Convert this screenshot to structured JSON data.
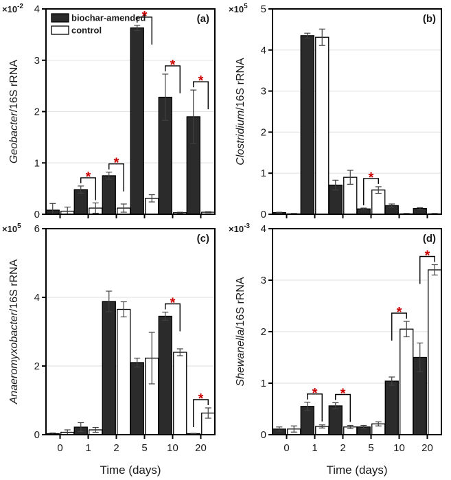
{
  "figure": {
    "title": "",
    "xlabel": "Time (days)",
    "categories": [
      "0",
      "1",
      "2",
      "5",
      "10",
      "20"
    ],
    "legend": {
      "position": "top-left-inside-panel-a",
      "items": [
        {
          "label": "biochar-amended",
          "swatch": "dark"
        },
        {
          "label": "control",
          "swatch": "light"
        }
      ]
    },
    "colors": {
      "bar_dark": "#2b2b2b",
      "bar_light": "#ffffff",
      "bar_border": "#000000",
      "axis": "#000000",
      "grid": "#e4e4e4",
      "error_bar": "#404040",
      "significance_star": "#cc0000",
      "text": "#1a1a1a"
    }
  },
  "chart_data": [
    {
      "type": "bar",
      "panel_label": "(a)",
      "ylabel_italic": "Geobacter",
      "ylabel_suffix": "/16S rRNA",
      "scale_base": "×10",
      "scale_exponent": "-2",
      "ylim": [
        0,
        4
      ],
      "yticks": [
        0,
        1,
        2,
        3,
        4
      ],
      "grid": true,
      "categories": [
        "0",
        "1",
        "2",
        "5",
        "10",
        "20"
      ],
      "series": [
        {
          "name": "biochar-amended",
          "values": [
            0.08,
            0.48,
            0.75,
            3.63,
            2.28,
            1.9
          ],
          "errors": [
            0.13,
            0.07,
            0.07,
            0.05,
            0.45,
            0.52
          ]
        },
        {
          "name": "control",
          "values": [
            0.06,
            0.12,
            0.12,
            0.31,
            0.03,
            0.04
          ],
          "errors": [
            0.08,
            0.1,
            0.08,
            0.07,
            0.01,
            0.01
          ]
        }
      ],
      "significant_days": [
        "1",
        "2",
        "5",
        "10",
        "20"
      ],
      "show_legend": true,
      "show_xticklabels": false,
      "xlabel": ""
    },
    {
      "type": "bar",
      "panel_label": "(b)",
      "ylabel_italic": "Clostridium",
      "ylabel_suffix": "/16S rRNA",
      "scale_base": "×10",
      "scale_exponent": "5",
      "ylim": [
        0,
        5
      ],
      "yticks": [
        0,
        1,
        2,
        3,
        4,
        5
      ],
      "grid": true,
      "categories": [
        "0",
        "1",
        "2",
        "5",
        "10",
        "20"
      ],
      "series": [
        {
          "name": "biochar-amended",
          "values": [
            0.04,
            4.35,
            0.71,
            0.13,
            0.21,
            0.14
          ],
          "errors": [
            0.01,
            0.06,
            0.12,
            0.02,
            0.04,
            0.02
          ]
        },
        {
          "name": "control",
          "values": [
            0.01,
            4.31,
            0.9,
            0.59,
            0.01,
            0.01
          ],
          "errors": [
            0.01,
            0.2,
            0.17,
            0.08,
            0.01,
            0.01
          ]
        }
      ],
      "significant_days": [
        "5"
      ],
      "show_legend": false,
      "show_xticklabels": false,
      "xlabel": ""
    },
    {
      "type": "bar",
      "panel_label": "(c)",
      "ylabel_italic": "Anaeromyxobacter",
      "ylabel_suffix": "/16S rRNA",
      "scale_base": "×10",
      "scale_exponent": "5",
      "ylim": [
        0,
        6
      ],
      "yticks": [
        0,
        2,
        4,
        6
      ],
      "grid": true,
      "categories": [
        "0",
        "1",
        "2",
        "5",
        "10",
        "20"
      ],
      "series": [
        {
          "name": "biochar-amended",
          "values": [
            0.03,
            0.22,
            3.88,
            2.1,
            3.45,
            0.03
          ],
          "errors": [
            0.02,
            0.13,
            0.3,
            0.13,
            0.12,
            0.01
          ]
        },
        {
          "name": "control",
          "values": [
            0.07,
            0.14,
            3.65,
            2.23,
            2.4,
            0.63
          ],
          "errors": [
            0.07,
            0.07,
            0.22,
            0.75,
            0.1,
            0.15
          ]
        }
      ],
      "significant_days": [
        "10",
        "20"
      ],
      "show_legend": false,
      "show_xticklabels": true,
      "xlabel": "Time (days)"
    },
    {
      "type": "bar",
      "panel_label": "(d)",
      "ylabel_italic": "Shewanella",
      "ylabel_suffix": "/16S rRNA",
      "scale_base": "×10",
      "scale_exponent": "-3",
      "ylim": [
        0,
        4
      ],
      "yticks": [
        0,
        1,
        2,
        3,
        4
      ],
      "grid": true,
      "categories": [
        "0",
        "1",
        "2",
        "5",
        "10",
        "20"
      ],
      "series": [
        {
          "name": "biochar-amended",
          "values": [
            0.11,
            0.55,
            0.56,
            0.15,
            1.04,
            1.5
          ],
          "errors": [
            0.04,
            0.08,
            0.06,
            0.03,
            0.08,
            0.28
          ]
        },
        {
          "name": "control",
          "values": [
            0.11,
            0.16,
            0.15,
            0.21,
            2.05,
            3.2
          ],
          "errors": [
            0.06,
            0.03,
            0.03,
            0.04,
            0.15,
            0.1
          ]
        }
      ],
      "significant_days": [
        "1",
        "2",
        "10",
        "20"
      ],
      "show_legend": false,
      "show_xticklabels": true,
      "xlabel": "Time (days)"
    }
  ]
}
